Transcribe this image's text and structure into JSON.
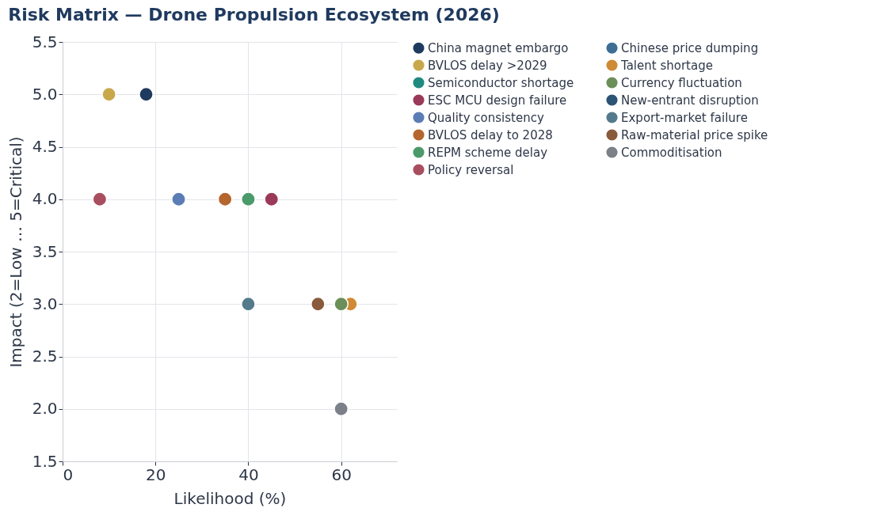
{
  "chart_data": {
    "type": "scatter",
    "title": "Risk Matrix — Drone Propulsion Ecosystem (2026)",
    "xlabel": "Likelihood (%)",
    "ylabel": "Impact (2=Low … 5=Critical)",
    "xlim": [
      0,
      72
    ],
    "ylim": [
      1.5,
      5.5
    ],
    "xticks": [
      0,
      20,
      40,
      60
    ],
    "yticks": [
      1.5,
      {
        "value": 2,
        "label": "2.0"
      },
      2.5,
      {
        "value": 3,
        "label": "3.0"
      },
      3.5,
      {
        "value": 4,
        "label": "4.0"
      },
      4.5,
      {
        "value": 5,
        "label": "5.0"
      },
      5.5
    ],
    "grid": true,
    "legend": "right",
    "marker": "circle",
    "series": [
      {
        "name": "China magnet embargo",
        "color": "#1f3a5f",
        "x": [
          18
        ],
        "values": [
          5
        ]
      },
      {
        "name": "BVLOS delay >2029",
        "color": "#c9a84c",
        "x": [
          10
        ],
        "values": [
          5
        ]
      },
      {
        "name": "Semiconductor shortage",
        "color": "#1f8a80",
        "x": [
          null
        ],
        "values": [
          null
        ]
      },
      {
        "name": "ESC MCU design failure",
        "color": "#9b3a58",
        "x": [
          45
        ],
        "values": [
          4
        ]
      },
      {
        "name": "Quality consistency",
        "color": "#5b7db5",
        "x": [
          25
        ],
        "values": [
          4
        ]
      },
      {
        "name": "BVLOS delay to 2028",
        "color": "#b5652e",
        "x": [
          35
        ],
        "values": [
          4
        ]
      },
      {
        "name": "REPM scheme delay",
        "color": "#4a9a6a",
        "x": [
          40
        ],
        "values": [
          4
        ]
      },
      {
        "name": "Policy reversal",
        "color": "#a84e5e",
        "x": [
          8
        ],
        "values": [
          4
        ]
      },
      {
        "name": "Chinese price dumping",
        "color": "#3d6e96",
        "x": [
          null
        ],
        "values": [
          null
        ]
      },
      {
        "name": "Talent shortage",
        "color": "#d08a35",
        "x": [
          62
        ],
        "values": [
          3
        ]
      },
      {
        "name": "Currency fluctuation",
        "color": "#6a8f58",
        "x": [
          60
        ],
        "values": [
          3
        ]
      },
      {
        "name": "New-entrant disruption",
        "color": "#2c5475",
        "x": [
          null
        ],
        "values": [
          null
        ]
      },
      {
        "name": "Export-market failure",
        "color": "#557a8c",
        "x": [
          40
        ],
        "values": [
          3
        ]
      },
      {
        "name": "Raw-material price spike",
        "color": "#8a5a3c",
        "x": [
          55
        ],
        "values": [
          3
        ]
      },
      {
        "name": "Commoditisation",
        "color": "#7b8089",
        "x": [
          60
        ],
        "values": [
          2
        ]
      }
    ]
  }
}
